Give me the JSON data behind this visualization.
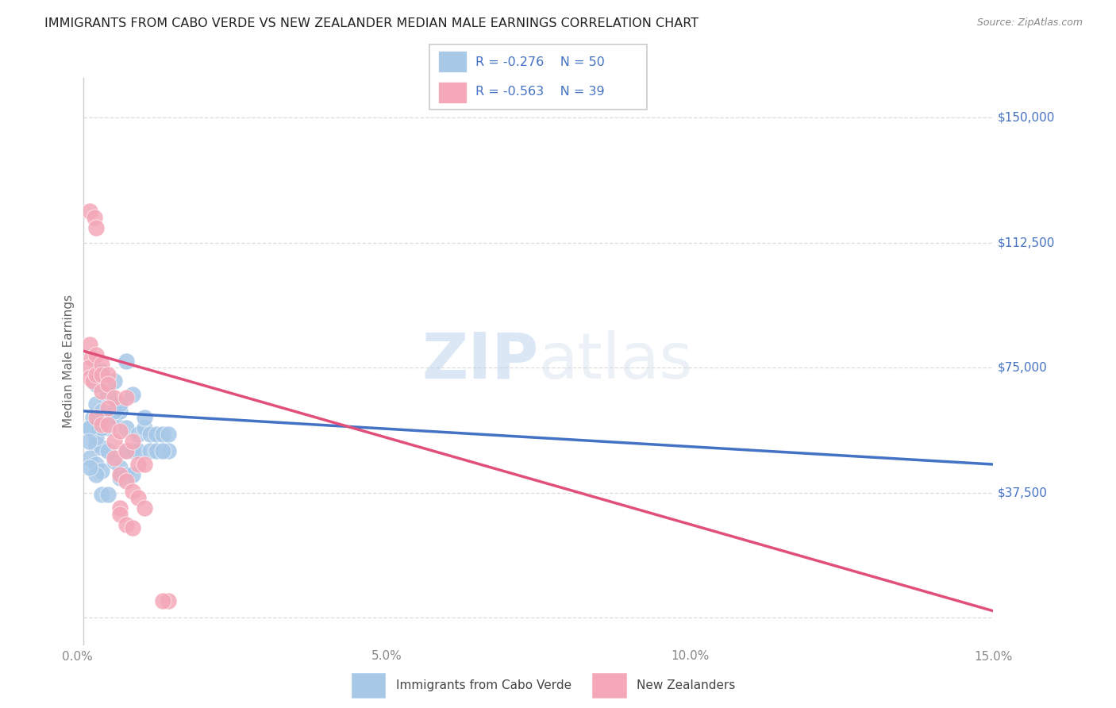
{
  "title": "IMMIGRANTS FROM CABO VERDE VS NEW ZEALANDER MEDIAN MALE EARNINGS CORRELATION CHART",
  "source": "Source: ZipAtlas.com",
  "ylabel": "Median Male Earnings",
  "y_ticks": [
    0,
    37500,
    75000,
    112500,
    150000
  ],
  "x_min": 0.0,
  "x_max": 0.15,
  "y_min": -8000,
  "y_max": 162000,
  "watermark_zip": "ZIP",
  "watermark_atlas": "atlas",
  "legend_blue_r": "R = -0.276",
  "legend_blue_n": "N = 50",
  "legend_pink_r": "R = -0.563",
  "legend_pink_n": "N = 39",
  "legend_label_blue": "Immigrants from Cabo Verde",
  "legend_label_pink": "New Zealanders",
  "blue_color": "#a8c8e8",
  "pink_color": "#f4a8b8",
  "blue_line_color": "#4472c4",
  "pink_line_color": "#e0507a",
  "legend_text_color": "#4472c4",
  "blue_scatter": [
    [
      0.001,
      57000
    ],
    [
      0.0015,
      60000
    ],
    [
      0.002,
      52000
    ],
    [
      0.001,
      48000
    ],
    [
      0.002,
      64000
    ],
    [
      0.003,
      62000
    ],
    [
      0.004,
      67000
    ],
    [
      0.005,
      71000
    ],
    [
      0.002,
      46000
    ],
    [
      0.003,
      51000
    ],
    [
      0.004,
      57000
    ],
    [
      0.005,
      60000
    ],
    [
      0.006,
      62000
    ],
    [
      0.004,
      50000
    ],
    [
      0.003,
      44000
    ],
    [
      0.002,
      43000
    ],
    [
      0.001,
      45000
    ],
    [
      0.002,
      54000
    ],
    [
      0.003,
      57000
    ],
    [
      0.004,
      60000
    ],
    [
      0.005,
      62000
    ],
    [
      0.006,
      64000
    ],
    [
      0.008,
      67000
    ],
    [
      0.007,
      57000
    ],
    [
      0.009,
      55000
    ],
    [
      0.01,
      57000
    ],
    [
      0.011,
      55000
    ],
    [
      0.012,
      55000
    ],
    [
      0.013,
      55000
    ],
    [
      0.014,
      55000
    ],
    [
      0.005,
      47000
    ],
    [
      0.006,
      45000
    ],
    [
      0.007,
      50000
    ],
    [
      0.008,
      50000
    ],
    [
      0.009,
      50000
    ],
    [
      0.006,
      42000
    ],
    [
      0.007,
      43000
    ],
    [
      0.008,
      43000
    ],
    [
      0.002,
      70000
    ],
    [
      0.003,
      74000
    ],
    [
      0.007,
      77000
    ],
    [
      0.01,
      60000
    ],
    [
      0.011,
      50000
    ],
    [
      0.012,
      50000
    ],
    [
      0.014,
      50000
    ],
    [
      0.013,
      50000
    ],
    [
      0.001,
      57000
    ],
    [
      0.0008,
      53000
    ],
    [
      0.003,
      37000
    ],
    [
      0.004,
      37000
    ]
  ],
  "pink_scatter": [
    [
      0.001,
      122000
    ],
    [
      0.0018,
      120000
    ],
    [
      0.002,
      117000
    ],
    [
      0.001,
      82000
    ],
    [
      0.0012,
      78000
    ],
    [
      0.0008,
      75000
    ],
    [
      0.002,
      79000
    ],
    [
      0.001,
      72000
    ],
    [
      0.0015,
      71000
    ],
    [
      0.002,
      73000
    ],
    [
      0.003,
      76000
    ],
    [
      0.003,
      73000
    ],
    [
      0.004,
      73000
    ],
    [
      0.003,
      68000
    ],
    [
      0.004,
      70000
    ],
    [
      0.005,
      66000
    ],
    [
      0.004,
      63000
    ],
    [
      0.002,
      60000
    ],
    [
      0.003,
      58000
    ],
    [
      0.004,
      58000
    ],
    [
      0.005,
      53000
    ],
    [
      0.006,
      56000
    ],
    [
      0.007,
      66000
    ],
    [
      0.005,
      48000
    ],
    [
      0.006,
      43000
    ],
    [
      0.007,
      50000
    ],
    [
      0.008,
      53000
    ],
    [
      0.009,
      46000
    ],
    [
      0.01,
      46000
    ],
    [
      0.007,
      41000
    ],
    [
      0.008,
      38000
    ],
    [
      0.009,
      36000
    ],
    [
      0.006,
      33000
    ],
    [
      0.006,
      31000
    ],
    [
      0.007,
      28000
    ],
    [
      0.008,
      27000
    ],
    [
      0.01,
      33000
    ],
    [
      0.014,
      5000
    ],
    [
      0.013,
      5000
    ]
  ],
  "blue_trend": [
    0.0,
    62000,
    0.15,
    46000
  ],
  "pink_trend": [
    0.0,
    80000,
    0.15,
    2000
  ],
  "background_color": "#ffffff",
  "title_color": "#222222",
  "grid_color": "#dddddd",
  "right_label_color": "#4472c4",
  "title_fontsize": 11.5,
  "source_fontsize": 9,
  "tick_label_color": "#888888"
}
